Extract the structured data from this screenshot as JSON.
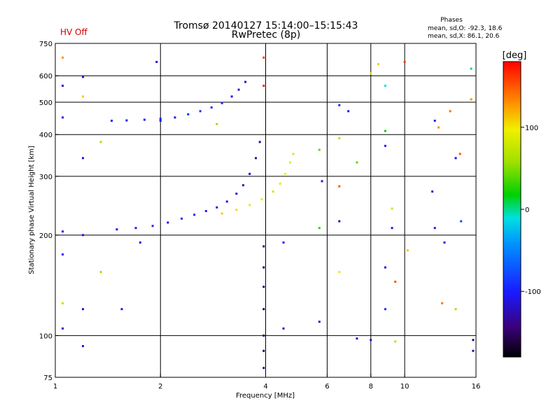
{
  "header": {
    "title_line1": "Tromsø 20140127 15:14:00–15:15:43",
    "title_line2": "RwPretec (8p)",
    "status": "HV Off",
    "status_color": "#cc0000",
    "phases_title": "Phases",
    "phases_o": "mean, sd,O: -92.3, 18.6",
    "phases_x": "mean, sd,X:  86.1, 20.6"
  },
  "colorbar": {
    "label": "[deg]",
    "ticks": [
      "100",
      "0",
      "-100"
    ],
    "tick_values": [
      100,
      0,
      -100
    ],
    "range": [
      -180,
      180
    ]
  },
  "chart_data": {
    "type": "scatter",
    "xlabel": "Frequency [MHz]",
    "ylabel": "Stationary phase Virtual Height [km]",
    "x_scale": "log",
    "y_scale": "log",
    "xlim": [
      1,
      16
    ],
    "ylim": [
      75,
      750
    ],
    "x_ticks": [
      1,
      2,
      4,
      6,
      8,
      10,
      16
    ],
    "x_tick_labels": [
      "1",
      "2",
      "4",
      "6",
      "8",
      "10",
      "16"
    ],
    "x_gridlines": [
      2,
      4,
      6,
      8,
      10
    ],
    "y_ticks": [
      75,
      100,
      200,
      300,
      400,
      500,
      600,
      750
    ],
    "y_tick_labels": [
      "75",
      "100",
      "200",
      "300",
      "400",
      "500",
      "600",
      "750"
    ],
    "y_gridlines": [
      100,
      200,
      300,
      400,
      500,
      600
    ],
    "grid": true,
    "color_variable": "phase [deg]",
    "series": [
      {
        "values": [
          {
            "x": 1.45,
            "y": 440,
            "c": -100
          },
          {
            "x": 1.6,
            "y": 441,
            "c": -105
          },
          {
            "x": 1.8,
            "y": 443,
            "c": -98
          },
          {
            "x": 2.0,
            "y": 446,
            "c": -95
          },
          {
            "x": 2.2,
            "y": 450,
            "c": -100
          },
          {
            "x": 2.4,
            "y": 460,
            "c": -92
          },
          {
            "x": 2.6,
            "y": 470,
            "c": -90
          },
          {
            "x": 2.8,
            "y": 482,
            "c": -95
          },
          {
            "x": 3.0,
            "y": 497,
            "c": -100
          },
          {
            "x": 3.2,
            "y": 520,
            "c": -105
          },
          {
            "x": 3.35,
            "y": 545,
            "c": -110
          },
          {
            "x": 3.5,
            "y": 575,
            "c": -115
          }
        ]
      },
      {
        "values": [
          {
            "x": 1.5,
            "y": 208,
            "c": -100
          },
          {
            "x": 1.7,
            "y": 210,
            "c": -105
          },
          {
            "x": 1.9,
            "y": 213,
            "c": -95
          },
          {
            "x": 2.1,
            "y": 218,
            "c": -100
          },
          {
            "x": 2.3,
            "y": 224,
            "c": -90
          },
          {
            "x": 2.5,
            "y": 230,
            "c": -95
          },
          {
            "x": 2.7,
            "y": 236,
            "c": -100
          },
          {
            "x": 2.9,
            "y": 242,
            "c": -105
          },
          {
            "x": 3.1,
            "y": 252,
            "c": -110
          },
          {
            "x": 3.3,
            "y": 266,
            "c": -115
          },
          {
            "x": 3.45,
            "y": 282,
            "c": -120
          },
          {
            "x": 3.6,
            "y": 305,
            "c": -125
          },
          {
            "x": 3.75,
            "y": 340,
            "c": -130
          },
          {
            "x": 3.85,
            "y": 380,
            "c": -135
          }
        ]
      },
      {
        "values": [
          {
            "x": 3.0,
            "y": 232,
            "c": 110
          },
          {
            "x": 3.3,
            "y": 238,
            "c": 105
          },
          {
            "x": 3.6,
            "y": 246,
            "c": 100
          },
          {
            "x": 3.9,
            "y": 256,
            "c": 95
          },
          {
            "x": 4.2,
            "y": 270,
            "c": 105
          },
          {
            "x": 4.4,
            "y": 285,
            "c": 100
          },
          {
            "x": 4.55,
            "y": 305,
            "c": 95
          },
          {
            "x": 4.7,
            "y": 330,
            "c": 100
          },
          {
            "x": 4.8,
            "y": 350,
            "c": 105
          }
        ]
      },
      {
        "values": [
          {
            "x": 3.95,
            "y": 185,
            "c": -150
          },
          {
            "x": 3.95,
            "y": 160,
            "c": -160
          },
          {
            "x": 3.95,
            "y": 140,
            "c": -155
          },
          {
            "x": 3.95,
            "y": 120,
            "c": -160
          },
          {
            "x": 3.95,
            "y": 100,
            "c": -150
          },
          {
            "x": 3.95,
            "y": 90,
            "c": -160
          },
          {
            "x": 3.95,
            "y": 80,
            "c": -150
          },
          {
            "x": 3.95,
            "y": 680,
            "c": 160
          },
          {
            "x": 3.95,
            "y": 560,
            "c": 170
          },
          {
            "x": 1.05,
            "y": 680,
            "c": 130
          },
          {
            "x": 1.05,
            "y": 560,
            "c": -110
          },
          {
            "x": 1.05,
            "y": 450,
            "c": -100
          },
          {
            "x": 1.05,
            "y": 205,
            "c": -110
          },
          {
            "x": 1.05,
            "y": 175,
            "c": -100
          },
          {
            "x": 1.05,
            "y": 125,
            "c": 70
          },
          {
            "x": 1.05,
            "y": 105,
            "c": -110
          },
          {
            "x": 1.2,
            "y": 595,
            "c": -100
          },
          {
            "x": 1.2,
            "y": 520,
            "c": 110
          },
          {
            "x": 1.2,
            "y": 340,
            "c": -110
          },
          {
            "x": 1.2,
            "y": 200,
            "c": -100
          },
          {
            "x": 1.2,
            "y": 120,
            "c": -110
          },
          {
            "x": 1.2,
            "y": 93,
            "c": -110
          },
          {
            "x": 1.35,
            "y": 380,
            "c": 60
          },
          {
            "x": 1.35,
            "y": 155,
            "c": 60
          },
          {
            "x": 1.55,
            "y": 120,
            "c": -105
          },
          {
            "x": 1.75,
            "y": 190,
            "c": -110
          },
          {
            "x": 1.95,
            "y": 660,
            "c": -110
          },
          {
            "x": 2.0,
            "y": 440,
            "c": -100
          },
          {
            "x": 2.9,
            "y": 430,
            "c": 60
          },
          {
            "x": 4.5,
            "y": 190,
            "c": -100
          },
          {
            "x": 4.5,
            "y": 105,
            "c": -110
          },
          {
            "x": 5.7,
            "y": 110,
            "c": -110
          },
          {
            "x": 5.7,
            "y": 210,
            "c": 30
          },
          {
            "x": 5.8,
            "y": 290,
            "c": -110
          },
          {
            "x": 5.7,
            "y": 360,
            "c": 40
          },
          {
            "x": 6.5,
            "y": 490,
            "c": -95
          },
          {
            "x": 6.5,
            "y": 390,
            "c": 70
          },
          {
            "x": 6.5,
            "y": 280,
            "c": 150
          },
          {
            "x": 6.5,
            "y": 220,
            "c": -130
          },
          {
            "x": 6.5,
            "y": 155,
            "c": 100
          },
          {
            "x": 6.9,
            "y": 470,
            "c": -110
          },
          {
            "x": 7.3,
            "y": 330,
            "c": 40
          },
          {
            "x": 7.3,
            "y": 98,
            "c": -120
          },
          {
            "x": 8.0,
            "y": 610,
            "c": 100
          },
          {
            "x": 8.0,
            "y": 97,
            "c": -110
          },
          {
            "x": 8.4,
            "y": 650,
            "c": 110
          },
          {
            "x": 8.8,
            "y": 560,
            "c": -10
          },
          {
            "x": 8.8,
            "y": 410,
            "c": 20
          },
          {
            "x": 8.8,
            "y": 370,
            "c": -100
          },
          {
            "x": 8.8,
            "y": 160,
            "c": -110
          },
          {
            "x": 8.8,
            "y": 120,
            "c": -90
          },
          {
            "x": 9.2,
            "y": 240,
            "c": 80
          },
          {
            "x": 9.2,
            "y": 210,
            "c": -110
          },
          {
            "x": 9.4,
            "y": 145,
            "c": 150
          },
          {
            "x": 9.4,
            "y": 96,
            "c": 70
          },
          {
            "x": 10.0,
            "y": 660,
            "c": 160
          },
          {
            "x": 10.2,
            "y": 180,
            "c": 110
          },
          {
            "x": 12.0,
            "y": 270,
            "c": -110
          },
          {
            "x": 12.2,
            "y": 210,
            "c": -110
          },
          {
            "x": 12.2,
            "y": 440,
            "c": -110
          },
          {
            "x": 12.5,
            "y": 420,
            "c": 130
          },
          {
            "x": 12.8,
            "y": 125,
            "c": 140
          },
          {
            "x": 13.0,
            "y": 190,
            "c": -110
          },
          {
            "x": 13.5,
            "y": 470,
            "c": 140
          },
          {
            "x": 14.0,
            "y": 340,
            "c": -110
          },
          {
            "x": 14.0,
            "y": 120,
            "c": 60
          },
          {
            "x": 14.4,
            "y": 350,
            "c": 150
          },
          {
            "x": 14.5,
            "y": 220,
            "c": -80
          },
          {
            "x": 15.5,
            "y": 630,
            "c": 0
          },
          {
            "x": 15.5,
            "y": 510,
            "c": 130
          },
          {
            "x": 15.7,
            "y": 97,
            "c": -150
          },
          {
            "x": 15.7,
            "y": 90,
            "c": -130
          }
        ]
      }
    ]
  }
}
